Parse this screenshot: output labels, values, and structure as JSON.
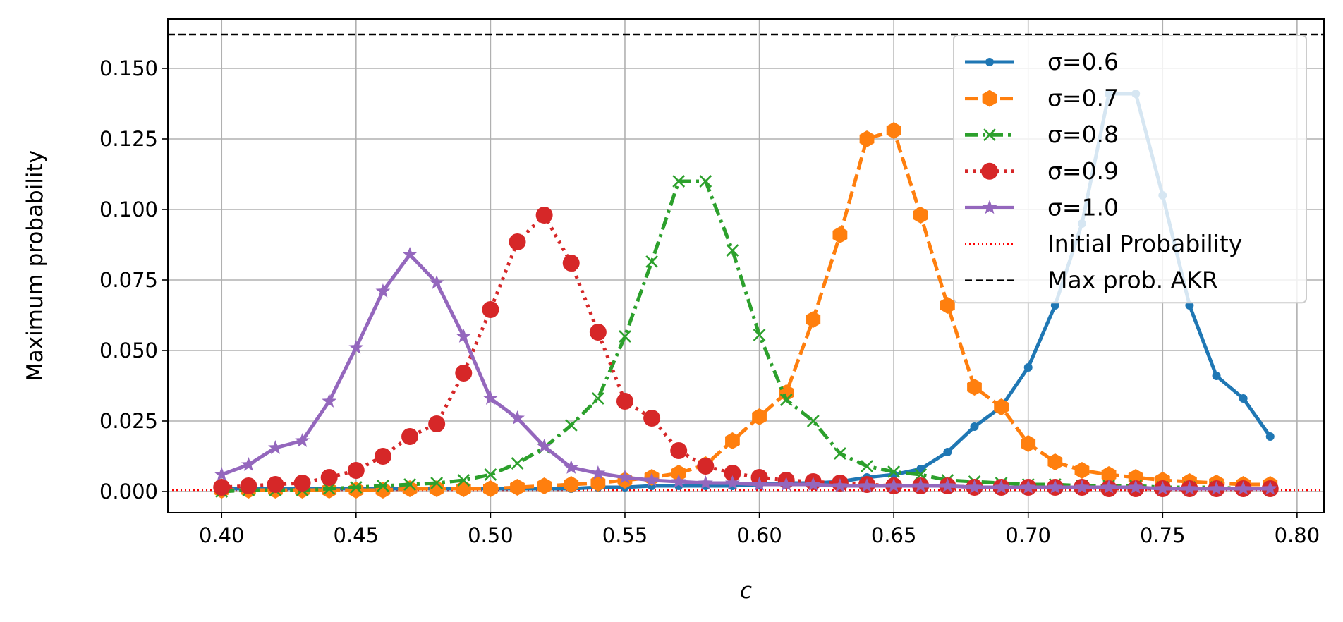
{
  "chart_data": {
    "type": "line",
    "title": "",
    "xlabel": "c",
    "ylabel": "Maximum probability",
    "xlim": [
      0.38,
      0.81
    ],
    "ylim": [
      -0.0075,
      0.1675
    ],
    "xticks": [
      "0.40",
      "0.45",
      "0.50",
      "0.55",
      "0.60",
      "0.65",
      "0.70",
      "0.75",
      "0.80"
    ],
    "yticks": [
      "0.000",
      "0.025",
      "0.050",
      "0.075",
      "0.100",
      "0.125",
      "0.150"
    ],
    "grid": true,
    "legend_position": "upper-right",
    "x": [
      0.4,
      0.41,
      0.42,
      0.43,
      0.44,
      0.45,
      0.46,
      0.47,
      0.48,
      0.49,
      0.5,
      0.51,
      0.52,
      0.53,
      0.54,
      0.55,
      0.56,
      0.57,
      0.58,
      0.59,
      0.6,
      0.61,
      0.62,
      0.63,
      0.64,
      0.65,
      0.66,
      0.67,
      0.68,
      0.69,
      0.7,
      0.71,
      0.72,
      0.73,
      0.74,
      0.75,
      0.76,
      0.77,
      0.78,
      0.79
    ],
    "series": [
      {
        "name": "σ=0.6",
        "color": "#1f77b4",
        "marker": "point",
        "linestyle": "solid",
        "values": [
          0.001,
          0.001,
          0.001,
          0.001,
          0.001,
          0.001,
          0.001,
          0.001,
          0.001,
          0.001,
          0.001,
          0.001,
          0.001,
          0.001,
          0.0015,
          0.0015,
          0.002,
          0.002,
          0.002,
          0.002,
          0.0025,
          0.003,
          0.003,
          0.0035,
          0.005,
          0.006,
          0.008,
          0.014,
          0.023,
          0.03,
          0.044,
          0.066,
          0.095,
          0.141,
          0.141,
          0.105,
          0.066,
          0.041,
          0.033,
          0.0195
        ]
      },
      {
        "name": "σ=0.7",
        "color": "#ff7f0e",
        "marker": "hexagon",
        "linestyle": "dashed",
        "values": [
          0.0005,
          0.0005,
          0.0005,
          0.0005,
          0.0005,
          0.0005,
          0.0005,
          0.001,
          0.001,
          0.001,
          0.001,
          0.0015,
          0.002,
          0.0025,
          0.003,
          0.004,
          0.005,
          0.0065,
          0.0095,
          0.018,
          0.0265,
          0.035,
          0.061,
          0.091,
          0.125,
          0.128,
          0.098,
          0.066,
          0.037,
          0.03,
          0.017,
          0.0105,
          0.0075,
          0.006,
          0.005,
          0.004,
          0.0035,
          0.003,
          0.0025,
          0.0025
        ]
      },
      {
        "name": "σ=0.8",
        "color": "#2ca02c",
        "marker": "x",
        "linestyle": "dashdot",
        "values": [
          0.0,
          0.0005,
          0.0005,
          0.0005,
          0.001,
          0.0015,
          0.002,
          0.0025,
          0.003,
          0.004,
          0.006,
          0.01,
          0.0155,
          0.0235,
          0.033,
          0.055,
          0.0815,
          0.11,
          0.11,
          0.0855,
          0.0555,
          0.0325,
          0.025,
          0.0135,
          0.009,
          0.007,
          0.006,
          0.004,
          0.0035,
          0.003,
          0.0025,
          0.0025,
          0.002,
          0.002,
          0.002,
          0.0015,
          0.0015,
          0.0015,
          0.001,
          0.001
        ]
      },
      {
        "name": "σ=0.9",
        "color": "#d62728",
        "marker": "circle",
        "linestyle": "dotted",
        "values": [
          0.0015,
          0.002,
          0.0025,
          0.003,
          0.005,
          0.0075,
          0.0125,
          0.0195,
          0.024,
          0.042,
          0.0645,
          0.0885,
          0.098,
          0.081,
          0.0565,
          0.032,
          0.026,
          0.0145,
          0.009,
          0.0065,
          0.005,
          0.004,
          0.0035,
          0.003,
          0.0025,
          0.002,
          0.002,
          0.002,
          0.0015,
          0.0015,
          0.0015,
          0.0015,
          0.0015,
          0.001,
          0.001,
          0.001,
          0.001,
          0.001,
          0.001,
          0.001
        ]
      },
      {
        "name": "σ=1.0",
        "color": "#9467bd",
        "marker": "star",
        "linestyle": "solid",
        "values": [
          0.006,
          0.0095,
          0.0155,
          0.018,
          0.032,
          0.051,
          0.071,
          0.084,
          0.074,
          0.055,
          0.033,
          0.026,
          0.016,
          0.0085,
          0.0065,
          0.005,
          0.004,
          0.0035,
          0.003,
          0.003,
          0.0025,
          0.0025,
          0.0025,
          0.002,
          0.002,
          0.002,
          0.002,
          0.002,
          0.0015,
          0.0015,
          0.0015,
          0.0015,
          0.0015,
          0.0015,
          0.0015,
          0.001,
          0.001,
          0.001,
          0.001,
          0.001
        ]
      }
    ],
    "reference_lines": [
      {
        "name": "Initial Probability",
        "color": "#ff0000",
        "linestyle": "dotted",
        "y": 0.0005
      },
      {
        "name": "Max prob. AKR",
        "color": "#000000",
        "linestyle": "dashed",
        "y": 0.162
      }
    ]
  }
}
